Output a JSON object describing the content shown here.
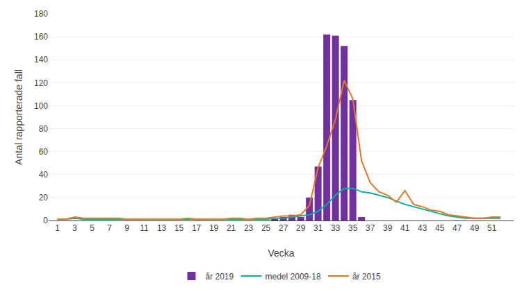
{
  "chart_data": {
    "type": "bar",
    "xlabel": "Vecka",
    "ylabel": "Antal rapporterade fall",
    "x": [
      1,
      2,
      3,
      4,
      5,
      6,
      7,
      8,
      9,
      10,
      11,
      12,
      13,
      14,
      15,
      16,
      17,
      18,
      19,
      20,
      21,
      22,
      23,
      24,
      25,
      26,
      27,
      28,
      29,
      30,
      31,
      32,
      33,
      34,
      35,
      36,
      37,
      38,
      39,
      40,
      41,
      42,
      43,
      44,
      45,
      46,
      47,
      48,
      49,
      50,
      51,
      52
    ],
    "xlim": [
      0.0,
      53.5
    ],
    "xticks": [
      1,
      3,
      5,
      7,
      9,
      11,
      13,
      15,
      17,
      19,
      21,
      23,
      25,
      27,
      29,
      31,
      33,
      35,
      37,
      39,
      41,
      43,
      45,
      47,
      49,
      51
    ],
    "ylim": [
      0,
      180
    ],
    "yticks": [
      0,
      20,
      40,
      60,
      80,
      100,
      120,
      140,
      160,
      180
    ],
    "grid": true,
    "legend": "bottom",
    "series": [
      {
        "name": "år 2019",
        "type": "bar",
        "color": "#7030a0",
        "values": [
          null,
          null,
          null,
          null,
          null,
          null,
          null,
          null,
          null,
          null,
          null,
          null,
          null,
          null,
          null,
          null,
          null,
          null,
          null,
          null,
          null,
          null,
          null,
          null,
          null,
          1,
          3,
          5,
          3,
          20,
          47,
          162,
          161,
          152,
          105,
          3,
          null,
          null,
          null,
          null,
          null,
          null,
          null,
          null,
          null,
          null,
          null,
          null,
          null,
          null,
          null,
          null
        ]
      },
      {
        "name": "medel 2009-18",
        "type": "line",
        "color": "#00b0a0",
        "values": [
          1,
          1,
          2,
          1,
          1,
          1,
          1,
          1,
          1,
          1,
          1,
          1,
          1,
          1,
          1,
          1,
          1,
          1,
          1,
          1,
          1,
          1,
          1,
          1,
          1,
          2,
          2,
          3,
          4,
          5,
          8,
          14,
          22,
          28,
          28,
          25,
          24,
          22,
          20,
          17,
          14,
          12,
          10,
          8,
          6,
          4,
          3,
          2,
          2,
          2,
          2,
          2
        ]
      },
      {
        "name": "år 2015",
        "type": "line",
        "color": "#e87722",
        "values": [
          1,
          1,
          3,
          2,
          2,
          2,
          2,
          2,
          1,
          1,
          1,
          1,
          1,
          1,
          1,
          2,
          1,
          1,
          1,
          1,
          2,
          2,
          1,
          2,
          2,
          3,
          4,
          4,
          5,
          13,
          46,
          65,
          88,
          122,
          106,
          52,
          33,
          25,
          22,
          16,
          26,
          14,
          12,
          9,
          8,
          5,
          4,
          3,
          2,
          2,
          3,
          3
        ]
      }
    ]
  }
}
